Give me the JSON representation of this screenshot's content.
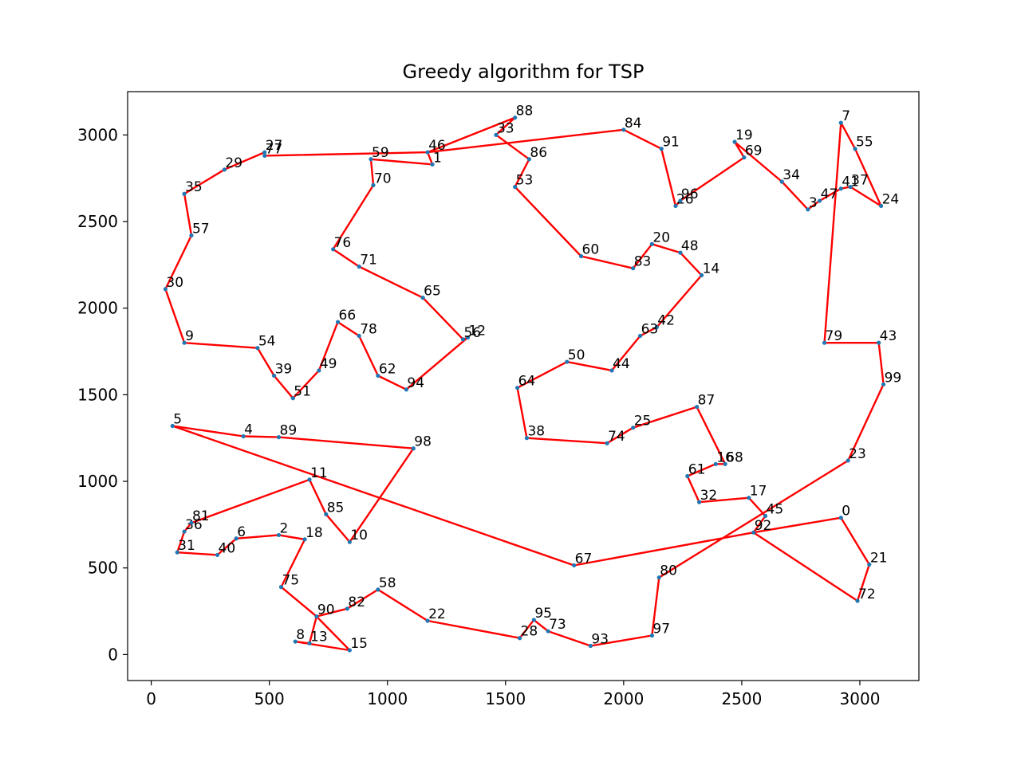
{
  "chart_data": {
    "type": "line",
    "title": "Greedy algorithm for TSP",
    "xlabel": "",
    "ylabel": "",
    "xlim": [
      -100,
      3250
    ],
    "ylim": [
      -150,
      3250
    ],
    "xticks": [
      0,
      500,
      1000,
      1500,
      2000,
      2500,
      3000
    ],
    "yticks": [
      0,
      500,
      1000,
      1500,
      2000,
      2500,
      3000
    ],
    "grid": false,
    "line_color": "#ff0000",
    "point_color": "#1f77b4",
    "points": [
      {
        "id": "0",
        "x": 2920,
        "y": 790
      },
      {
        "id": "1",
        "x": 1190,
        "y": 2830
      },
      {
        "id": "2",
        "x": 540,
        "y": 690
      },
      {
        "id": "3",
        "x": 2780,
        "y": 2570
      },
      {
        "id": "4",
        "x": 390,
        "y": 1260
      },
      {
        "id": "5",
        "x": 90,
        "y": 1320
      },
      {
        "id": "6",
        "x": 360,
        "y": 670
      },
      {
        "id": "7",
        "x": 2920,
        "y": 3070
      },
      {
        "id": "8",
        "x": 610,
        "y": 75
      },
      {
        "id": "9",
        "x": 140,
        "y": 1800
      },
      {
        "id": "10",
        "x": 840,
        "y": 650
      },
      {
        "id": "11",
        "x": 670,
        "y": 1010
      },
      {
        "id": "12",
        "x": 1340,
        "y": 1830
      },
      {
        "id": "13",
        "x": 670,
        "y": 65
      },
      {
        "id": "14",
        "x": 2330,
        "y": 2190
      },
      {
        "id": "15",
        "x": 840,
        "y": 25
      },
      {
        "id": "16",
        "x": 2390,
        "y": 1100
      },
      {
        "id": "17",
        "x": 2530,
        "y": 905
      },
      {
        "id": "18",
        "x": 650,
        "y": 665
      },
      {
        "id": "19",
        "x": 2470,
        "y": 2960
      },
      {
        "id": "20",
        "x": 2120,
        "y": 2370
      },
      {
        "id": "21",
        "x": 3040,
        "y": 520
      },
      {
        "id": "22",
        "x": 1170,
        "y": 195
      },
      {
        "id": "23",
        "x": 2950,
        "y": 1120
      },
      {
        "id": "24",
        "x": 3090,
        "y": 2590
      },
      {
        "id": "25",
        "x": 2040,
        "y": 1310
      },
      {
        "id": "26",
        "x": 2220,
        "y": 2590
      },
      {
        "id": "27",
        "x": 480,
        "y": 2900
      },
      {
        "id": "28",
        "x": 1560,
        "y": 95
      },
      {
        "id": "29",
        "x": 310,
        "y": 2800
      },
      {
        "id": "30",
        "x": 60,
        "y": 2110
      },
      {
        "id": "31",
        "x": 110,
        "y": 590
      },
      {
        "id": "32",
        "x": 2320,
        "y": 880
      },
      {
        "id": "33",
        "x": 1460,
        "y": 3000
      },
      {
        "id": "34",
        "x": 2670,
        "y": 2730
      },
      {
        "id": "35",
        "x": 140,
        "y": 2660
      },
      {
        "id": "36",
        "x": 140,
        "y": 710
      },
      {
        "id": "37",
        "x": 2960,
        "y": 2700
      },
      {
        "id": "38",
        "x": 1590,
        "y": 1250
      },
      {
        "id": "39",
        "x": 520,
        "y": 1610
      },
      {
        "id": "40",
        "x": 280,
        "y": 575
      },
      {
        "id": "41",
        "x": 2920,
        "y": 2690
      },
      {
        "id": "42",
        "x": 2140,
        "y": 1890
      },
      {
        "id": "43",
        "x": 3080,
        "y": 1800
      },
      {
        "id": "44",
        "x": 1950,
        "y": 1640
      },
      {
        "id": "45",
        "x": 2600,
        "y": 800
      },
      {
        "id": "46",
        "x": 1170,
        "y": 2900
      },
      {
        "id": "47",
        "x": 2830,
        "y": 2620
      },
      {
        "id": "48",
        "x": 2240,
        "y": 2320
      },
      {
        "id": "49",
        "x": 710,
        "y": 1640
      },
      {
        "id": "50",
        "x": 1760,
        "y": 1690
      },
      {
        "id": "51",
        "x": 600,
        "y": 1480
      },
      {
        "id": "53",
        "x": 1540,
        "y": 2700
      },
      {
        "id": "54",
        "x": 450,
        "y": 1770
      },
      {
        "id": "55",
        "x": 2980,
        "y": 2920
      },
      {
        "id": "56",
        "x": 1320,
        "y": 1820
      },
      {
        "id": "57",
        "x": 170,
        "y": 2420
      },
      {
        "id": "58",
        "x": 960,
        "y": 375
      },
      {
        "id": "59",
        "x": 930,
        "y": 2860
      },
      {
        "id": "60",
        "x": 1820,
        "y": 2300
      },
      {
        "id": "61",
        "x": 2270,
        "y": 1030
      },
      {
        "id": "62",
        "x": 960,
        "y": 1610
      },
      {
        "id": "63",
        "x": 2070,
        "y": 1840
      },
      {
        "id": "64",
        "x": 1550,
        "y": 1540
      },
      {
        "id": "65",
        "x": 1150,
        "y": 2060
      },
      {
        "id": "66",
        "x": 790,
        "y": 1920
      },
      {
        "id": "67",
        "x": 1790,
        "y": 515
      },
      {
        "id": "68",
        "x": 2430,
        "y": 1100
      },
      {
        "id": "69",
        "x": 2510,
        "y": 2870
      },
      {
        "id": "70",
        "x": 940,
        "y": 2710
      },
      {
        "id": "71",
        "x": 880,
        "y": 2240
      },
      {
        "id": "72",
        "x": 2990,
        "y": 310
      },
      {
        "id": "73",
        "x": 1680,
        "y": 135
      },
      {
        "id": "74",
        "x": 1930,
        "y": 1220
      },
      {
        "id": "75",
        "x": 550,
        "y": 390
      },
      {
        "id": "76",
        "x": 770,
        "y": 2340
      },
      {
        "id": "77",
        "x": 480,
        "y": 2880
      },
      {
        "id": "78",
        "x": 880,
        "y": 1840
      },
      {
        "id": "79",
        "x": 2850,
        "y": 1800
      },
      {
        "id": "80",
        "x": 2150,
        "y": 445
      },
      {
        "id": "81",
        "x": 170,
        "y": 760
      },
      {
        "id": "82",
        "x": 830,
        "y": 265
      },
      {
        "id": "83",
        "x": 2040,
        "y": 2230
      },
      {
        "id": "84",
        "x": 2000,
        "y": 3030
      },
      {
        "id": "85",
        "x": 740,
        "y": 810
      },
      {
        "id": "86",
        "x": 1600,
        "y": 2860
      },
      {
        "id": "87",
        "x": 2310,
        "y": 1430
      },
      {
        "id": "88",
        "x": 1540,
        "y": 3100
      },
      {
        "id": "89",
        "x": 540,
        "y": 1255
      },
      {
        "id": "90",
        "x": 700,
        "y": 220
      },
      {
        "id": "91",
        "x": 2160,
        "y": 2920
      },
      {
        "id": "92",
        "x": 2550,
        "y": 705
      },
      {
        "id": "93",
        "x": 1860,
        "y": 50
      },
      {
        "id": "94",
        "x": 1080,
        "y": 1530
      },
      {
        "id": "95",
        "x": 1620,
        "y": 200
      },
      {
        "id": "96",
        "x": 2240,
        "y": 2620
      },
      {
        "id": "97",
        "x": 2120,
        "y": 110
      },
      {
        "id": "98",
        "x": 1110,
        "y": 1190
      },
      {
        "id": "99",
        "x": 3100,
        "y": 1560
      }
    ],
    "tour": [
      "0",
      "21",
      "72",
      "92",
      "67",
      "5",
      "4",
      "89",
      "98",
      "10",
      "85",
      "11",
      "81",
      "36",
      "31",
      "40",
      "6",
      "2",
      "18",
      "75",
      "90",
      "13",
      "8",
      "15",
      "90",
      "82",
      "58",
      "22",
      "28",
      "95",
      "73",
      "93",
      "97",
      "80",
      "23",
      "99",
      "43",
      "79",
      "7",
      "55",
      "24",
      "37",
      "41",
      "47",
      "3",
      "34",
      "19",
      "69",
      "96",
      "26",
      "91",
      "84",
      "46",
      "1",
      "59",
      "70",
      "76",
      "71",
      "65",
      "56",
      "12",
      "94",
      "62",
      "78",
      "66",
      "49",
      "51",
      "39",
      "54",
      "9",
      "30",
      "57",
      "35",
      "29",
      "27",
      "77",
      "46",
      "88",
      "33",
      "86",
      "53",
      "60",
      "83",
      "20",
      "48",
      "14",
      "42",
      "63",
      "44",
      "50",
      "64",
      "38",
      "74",
      "25",
      "87",
      "68",
      "16",
      "61",
      "32",
      "17",
      "45",
      "92",
      "0"
    ]
  }
}
